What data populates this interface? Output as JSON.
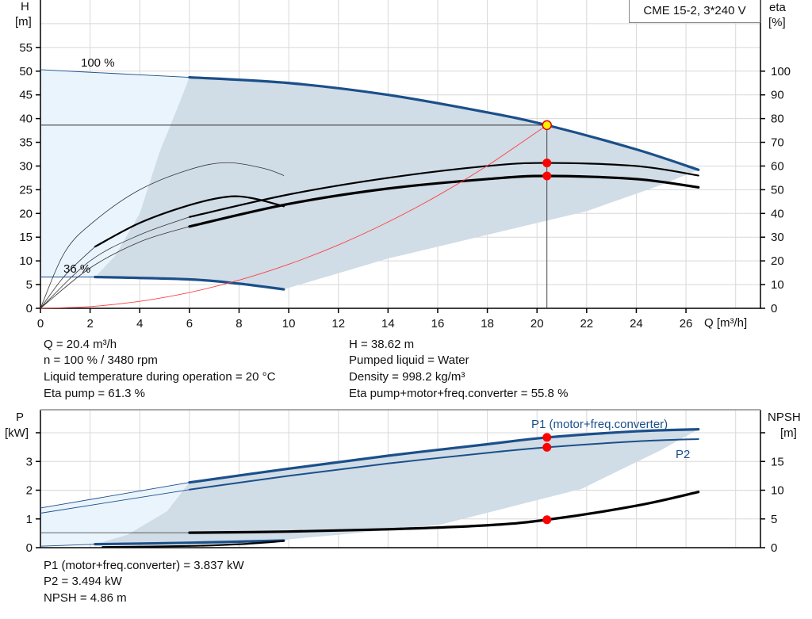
{
  "legend": "CME 15-2, 3*240 V",
  "colors": {
    "curve_blue": "#1b4f8a",
    "range_dark": "#d0dce6",
    "range_light": "#eaf4fd",
    "duty_point": "#ff0000",
    "system_curve": "#ff4040",
    "grid": "#d8d8d8"
  },
  "info_top": {
    "left": [
      "Q = 20.4 m³/h",
      "n = 100 % / 3480 rpm",
      "Liquid temperature during operation = 20 °C",
      "Eta pump = 61.3 %"
    ],
    "right": [
      "H = 38.62 m",
      "Pumped liquid = Water",
      "Density = 998.2 kg/m³",
      "Eta pump+motor+freq.converter = 55.8 %"
    ]
  },
  "info_bottom": [
    "P1 (motor+freq.converter) = 3.837 kW",
    "P2 = 3.494 kW",
    "NPSH = 4.86 m"
  ],
  "chart_data": [
    {
      "type": "line",
      "grid": true,
      "ylabel": [
        "H",
        "[m]"
      ],
      "y2label": [
        "eta",
        "[%]"
      ],
      "xlabel": "Q [m³/h]",
      "xlim": [
        0,
        29
      ],
      "ylim": [
        0,
        65
      ],
      "y2lim": [
        0,
        130
      ],
      "xticks": [
        0,
        2,
        4,
        6,
        8,
        10,
        12,
        14,
        16,
        18,
        20,
        22,
        24,
        26
      ],
      "yticks": [
        0,
        5,
        10,
        15,
        20,
        25,
        30,
        35,
        40,
        45,
        50,
        55
      ],
      "y2ticks": [
        0,
        10,
        20,
        30,
        40,
        50,
        60,
        70,
        80,
        90,
        100
      ],
      "annotations": [
        {
          "text": "100 %"
        },
        {
          "text": "36 %"
        }
      ],
      "operating_range_dark": [
        [
          6,
          48.7
        ],
        [
          10,
          47.5
        ],
        [
          14,
          45
        ],
        [
          18,
          41.3
        ],
        [
          20.4,
          38.62
        ],
        [
          24,
          33.5
        ],
        [
          26.5,
          29.2
        ],
        [
          25,
          26
        ],
        [
          22,
          20.5
        ],
        [
          18,
          15.5
        ],
        [
          14,
          10.5
        ],
        [
          9.8,
          4
        ],
        [
          8,
          5.2
        ],
        [
          6,
          6
        ],
        [
          2.2,
          6.6
        ],
        [
          3,
          11
        ],
        [
          4,
          20
        ],
        [
          4.8,
          33
        ],
        [
          5.5,
          42
        ],
        [
          6,
          48.7
        ]
      ],
      "operating_range_light": [
        [
          0,
          50.3
        ],
        [
          6,
          48.7
        ],
        [
          5.5,
          42
        ],
        [
          4.8,
          33
        ],
        [
          4,
          20
        ],
        [
          3,
          11
        ],
        [
          2.2,
          6.6
        ],
        [
          0,
          6.6
        ]
      ],
      "series": [
        {
          "name": "H 100 %",
          "axis": "H",
          "style": "blue-thick",
          "points": [
            [
              6,
              48.7
            ],
            [
              10,
              47.5
            ],
            [
              14,
              45
            ],
            [
              18,
              41.3
            ],
            [
              20.4,
              38.62
            ],
            [
              24,
              33.5
            ],
            [
              26.5,
              29.2
            ]
          ]
        },
        {
          "axis": "H",
          "style": "blue-thin",
          "points": [
            [
              0,
              50.3
            ],
            [
              3,
              49.5
            ],
            [
              6,
              48.7
            ]
          ]
        },
        {
          "name": "H 36 %",
          "axis": "H",
          "style": "blue-thick",
          "points": [
            [
              2.2,
              6.6
            ],
            [
              6,
              6.1
            ],
            [
              8,
              5.2
            ],
            [
              9.8,
              4
            ]
          ]
        },
        {
          "axis": "H",
          "style": "blue-thin",
          "points": [
            [
              0,
              6.6
            ],
            [
              2.2,
              6.6
            ]
          ]
        },
        {
          "name": "Eta pump",
          "axis": "eta",
          "style": "black-mid",
          "points": [
            [
              6,
              38.5
            ],
            [
              10,
              48
            ],
            [
              14,
              55
            ],
            [
              18,
              60
            ],
            [
              20.4,
              61.3
            ],
            [
              24,
              60
            ],
            [
              26.5,
              56
            ]
          ]
        },
        {
          "axis": "eta",
          "style": "black-thin",
          "points": [
            [
              0,
              0
            ],
            [
              2,
              20
            ],
            [
              4,
              31
            ],
            [
              6,
              38.5
            ]
          ]
        },
        {
          "name": "Eta pump+motor+freq.converter",
          "axis": "eta",
          "style": "black-thick",
          "points": [
            [
              6,
              34.5
            ],
            [
              10,
              44
            ],
            [
              14,
              50.5
            ],
            [
              18,
              54.5
            ],
            [
              20.4,
              55.8
            ],
            [
              24,
              54.5
            ],
            [
              26.5,
              51
            ]
          ]
        },
        {
          "axis": "eta",
          "style": "black-thin",
          "points": [
            [
              0,
              0
            ],
            [
              2,
              17
            ],
            [
              4,
              28
            ],
            [
              6,
              34.5
            ]
          ]
        },
        {
          "axis": "eta",
          "style": "black-thin",
          "points": [
            [
              0,
              0
            ],
            [
              1,
              24
            ],
            [
              2.2,
              37
            ],
            [
              4,
              50
            ],
            [
              6,
              58.5
            ],
            [
              7.5,
              61.4
            ],
            [
              9,
              59
            ],
            [
              9.8,
              56
            ]
          ]
        },
        {
          "axis": "eta",
          "style": "black-mid",
          "points": [
            [
              2.2,
              26
            ],
            [
              4,
              36
            ],
            [
              6,
              43.5
            ],
            [
              7.5,
              47
            ],
            [
              8.5,
              46.5
            ],
            [
              9.8,
              43
            ]
          ]
        },
        {
          "axis": "eta",
          "style": "black-thin",
          "points": [
            [
              0,
              0
            ],
            [
              1,
              14
            ],
            [
              2.2,
              26
            ]
          ]
        },
        {
          "name": "System curve",
          "axis": "H",
          "style": "red-thin",
          "points": [
            [
              0,
              0
            ],
            [
              2,
              0.37
            ],
            [
              4,
              1.48
            ],
            [
              6,
              3.34
            ],
            [
              8,
              5.94
            ],
            [
              10,
              9.28
            ],
            [
              12,
              13.36
            ],
            [
              14,
              18.19
            ],
            [
              16,
              23.76
            ],
            [
              18,
              30.07
            ],
            [
              20.4,
              38.62
            ]
          ]
        },
        {
          "name": "Duty point",
          "axis": "H",
          "style": "duty-lines",
          "points": [
            [
              0,
              38.62
            ],
            [
              20.4,
              38.62
            ],
            [
              20.4,
              0
            ]
          ]
        }
      ],
      "points": [
        {
          "name": "duty-point-H",
          "axis": "H",
          "x": 20.4,
          "y": 38.62,
          "fill": "#ffee00"
        },
        {
          "name": "duty-point-eta-pump",
          "axis": "eta",
          "x": 20.4,
          "y": 61.3,
          "fill": "#ff0000"
        },
        {
          "name": "duty-point-eta-total",
          "axis": "eta",
          "x": 20.4,
          "y": 55.8,
          "fill": "#ff0000"
        }
      ]
    },
    {
      "type": "line",
      "grid": true,
      "ylabel": [
        "P",
        "[kW]"
      ],
      "y2label": [
        "NPSH",
        "[m]"
      ],
      "xlim": [
        0,
        29
      ],
      "ylim": [
        0,
        4.8
      ],
      "y2lim": [
        0,
        24
      ],
      "yticks": [
        0,
        1,
        2,
        3,
        4
      ],
      "yticklabels": [
        "0",
        "1",
        "2",
        "3",
        ""
      ],
      "y2ticks": [
        0,
        5,
        10,
        15,
        20
      ],
      "y2ticklabels": [
        "0",
        "5",
        "10",
        "15",
        ""
      ],
      "operating_range_dark": [
        [
          6,
          2.27
        ],
        [
          10,
          2.75
        ],
        [
          14,
          3.2
        ],
        [
          18,
          3.6
        ],
        [
          20.4,
          3.837
        ],
        [
          24,
          4.05
        ],
        [
          26.5,
          4.12
        ],
        [
          25,
          3.4
        ],
        [
          21.8,
          2.05
        ],
        [
          16.1,
          0.8
        ],
        [
          12,
          0.45
        ],
        [
          10,
          0.29
        ],
        [
          9.8,
          0.25
        ],
        [
          6,
          0.18
        ],
        [
          2.2,
          0.12
        ],
        [
          3.5,
          0.45
        ],
        [
          5.1,
          1.27
        ],
        [
          6,
          2.27
        ]
      ],
      "operating_range_light": [
        [
          0,
          1.38
        ],
        [
          6,
          2.27
        ],
        [
          5.1,
          1.27
        ],
        [
          3.5,
          0.45
        ],
        [
          2.2,
          0.12
        ],
        [
          0,
          0.05
        ]
      ],
      "series_labels": [
        {
          "text": "P1 (motor+freq.converter)"
        },
        {
          "text": "P2"
        }
      ],
      "series": [
        {
          "name": "P1 (motor+freq.converter)",
          "axis": "P",
          "style": "blue-thick",
          "points": [
            [
              6,
              2.27
            ],
            [
              10,
              2.75
            ],
            [
              14,
              3.2
            ],
            [
              18,
              3.6
            ],
            [
              20.4,
              3.837
            ],
            [
              24,
              4.05
            ],
            [
              26.5,
              4.12
            ]
          ]
        },
        {
          "axis": "P",
          "style": "blue-thin",
          "points": [
            [
              0,
              1.38
            ],
            [
              6,
              2.27
            ]
          ]
        },
        {
          "name": "P2",
          "axis": "P",
          "style": "blue-mid",
          "points": [
            [
              6,
              2.02
            ],
            [
              10,
              2.5
            ],
            [
              14,
              2.93
            ],
            [
              18,
              3.3
            ],
            [
              20.4,
              3.494
            ],
            [
              24,
              3.7
            ],
            [
              26.5,
              3.78
            ]
          ]
        },
        {
          "axis": "P",
          "style": "blue-thin",
          "points": [
            [
              0,
              1.2
            ],
            [
              6,
              2.02
            ]
          ]
        },
        {
          "name": "NPSH",
          "axis": "NPSH",
          "style": "black-thick",
          "points": [
            [
              6,
              2.6
            ],
            [
              10,
              2.8
            ],
            [
              14,
              3.2
            ],
            [
              18,
              3.9
            ],
            [
              20.4,
              4.86
            ],
            [
              24,
              7.3
            ],
            [
              26.5,
              9.7
            ]
          ]
        },
        {
          "axis": "NPSH",
          "style": "black-thin",
          "points": [
            [
              0,
              2.6
            ],
            [
              6,
              2.6
            ]
          ]
        },
        {
          "axis": "P",
          "style": "blue-thick",
          "points": [
            [
              2.2,
              0.12
            ],
            [
              6,
              0.17
            ],
            [
              9.8,
              0.25
            ]
          ]
        },
        {
          "axis": "P",
          "style": "blue-thin",
          "points": [
            [
              0,
              0.05
            ],
            [
              2.2,
              0.12
            ]
          ]
        },
        {
          "axis": "P",
          "style": "black-mid",
          "points": [
            [
              2.5,
              0.02
            ],
            [
              6,
              0.06
            ],
            [
              8,
              0.12
            ],
            [
              9.8,
              0.23
            ]
          ]
        }
      ],
      "points": [
        {
          "name": "duty-point-P1",
          "axis": "P",
          "x": 20.4,
          "y": 3.837,
          "fill": "#ff0000"
        },
        {
          "name": "duty-point-P2",
          "axis": "P",
          "x": 20.4,
          "y": 3.494,
          "fill": "#ff0000"
        },
        {
          "name": "duty-point-NPSH",
          "axis": "NPSH",
          "x": 20.4,
          "y": 4.86,
          "fill": "#ff0000"
        }
      ]
    }
  ]
}
